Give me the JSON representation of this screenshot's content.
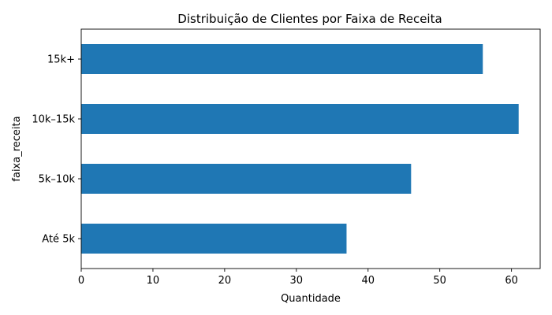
{
  "chart_data": {
    "type": "bar",
    "orientation": "horizontal",
    "title": "Distribuição de Clientes por Faixa de Receita",
    "xlabel": "Quantidade",
    "ylabel": "faixa_receita",
    "categories": [
      "Até 5k",
      "5k–10k",
      "10k–15k",
      "15k+"
    ],
    "values": [
      37,
      46,
      61,
      56
    ],
    "xlim": [
      0,
      64
    ],
    "xticks": [
      0,
      10,
      20,
      30,
      40,
      50,
      60
    ],
    "grid": false,
    "bar_color": "#1f77b4"
  }
}
